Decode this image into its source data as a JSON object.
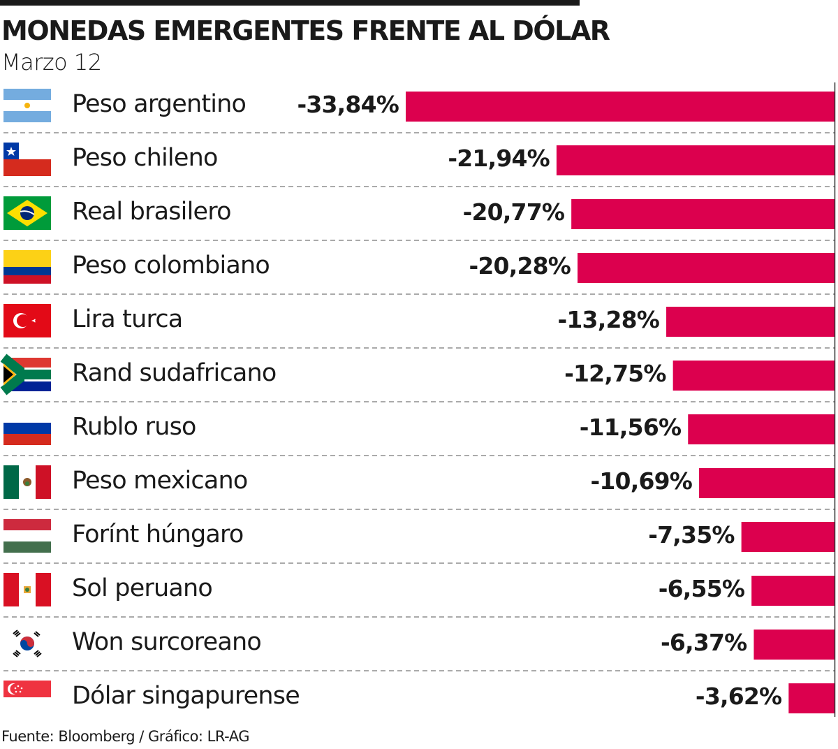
{
  "header": {
    "title": "MONEDAS EMERGENTES FRENTE AL DÓLAR",
    "subtitle": "Marzo 12"
  },
  "footer": {
    "source": "Fuente: Bloomberg / Gráfico: LR-AG"
  },
  "colors": {
    "bar": "#dc004e",
    "text": "#1a1a1a"
  },
  "chart_data": {
    "type": "bar",
    "orientation": "horizontal",
    "title": "MONEDAS EMERGENTES FRENTE AL DÓLAR",
    "subtitle": "Marzo 12",
    "categories": [
      "Peso argentino",
      "Peso chileno",
      "Real brasilero",
      "Peso colombiano",
      "Lira turca",
      "Rand sudafricano",
      "Rublo ruso",
      "Peso mexicano",
      "Forínt húngaro",
      "Sol peruano",
      "Won surcoreano",
      "Dólar singapurense"
    ],
    "values": [
      -33.84,
      -21.94,
      -20.77,
      -20.28,
      -13.28,
      -12.75,
      -11.56,
      -10.69,
      -7.35,
      -6.55,
      -6.37,
      -3.62
    ],
    "value_labels": [
      "-33,84%",
      "-21,94%",
      "-20,77%",
      "-20,28%",
      "-13,28%",
      "-12,75%",
      "-11,56%",
      "-10,69%",
      "-7,35%",
      "-6,55%",
      "-6,37%",
      "-3,62%"
    ],
    "flags": [
      "argentina",
      "chile",
      "brazil",
      "colombia",
      "turkey",
      "south-africa",
      "russia",
      "mexico",
      "hungary",
      "peru",
      "south-korea",
      "singapore"
    ],
    "unit": "%",
    "xlim": [
      -33.84,
      0
    ],
    "grid": "dashed row separators"
  }
}
